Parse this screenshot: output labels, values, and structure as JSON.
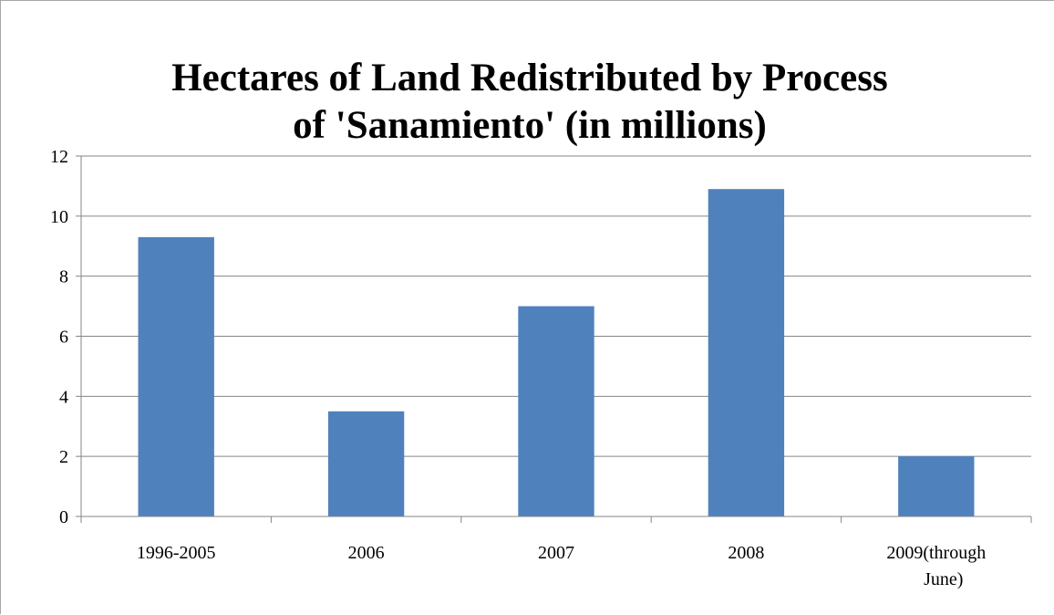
{
  "chart_data": {
    "type": "bar",
    "title_lines": [
      "Hectares of Land Redistributed by Process",
      "of 'Sanamiento' (in millions)"
    ],
    "categories": [
      [
        "1996-2005"
      ],
      [
        "2006"
      ],
      [
        "2007"
      ],
      [
        "2008"
      ],
      [
        "2009(through",
        "June)"
      ]
    ],
    "values": [
      9.3,
      3.5,
      7.0,
      10.9,
      2.0
    ],
    "ylim": [
      0,
      12
    ],
    "y_ticks": [
      "0",
      "2",
      "4",
      "6",
      "8",
      "10",
      "12"
    ],
    "y_tick_values": [
      0,
      2,
      4,
      6,
      8,
      10,
      12
    ],
    "grid": true,
    "legend": "none",
    "bar_color": "#4f81bd",
    "grid_color": "#868686",
    "axis_color": "#868686"
  }
}
